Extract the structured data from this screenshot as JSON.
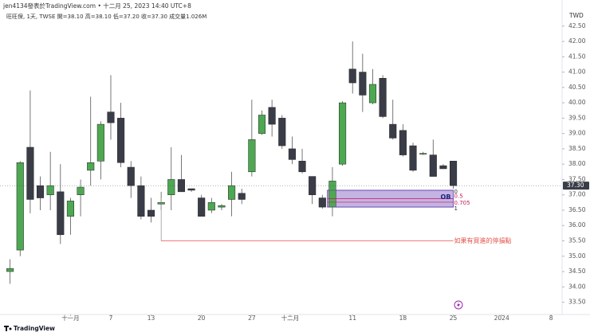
{
  "header": {
    "author_line": "jen4134發表於TradingView.com • 十二月 25, 2023 14:40 UTC+8",
    "symbol_line": "旺旺保, 1天, TWSE 開=38.10 高=38.10 低=37.20 收=37.30 成交量1.026M"
  },
  "brand": "TradingView",
  "chart_data": {
    "type": "candlestick",
    "currency": "TWD",
    "up_color": "#4ea852",
    "down_color": "#3a3d47",
    "candles": [
      {
        "o": 34.5,
        "h": 34.9,
        "l": 34.1,
        "c": 34.6
      },
      {
        "o": 35.2,
        "h": 38.1,
        "l": 35.0,
        "c": 38.05
      },
      {
        "o": 38.55,
        "h": 40.4,
        "l": 36.4,
        "c": 36.85
      },
      {
        "o": 37.3,
        "h": 37.6,
        "l": 36.5,
        "c": 36.9
      },
      {
        "o": 37.0,
        "h": 38.4,
        "l": 36.5,
        "c": 37.3
      },
      {
        "o": 37.1,
        "h": 38.0,
        "l": 35.4,
        "c": 35.7
      },
      {
        "o": 36.3,
        "h": 36.9,
        "l": 35.7,
        "c": 36.8
      },
      {
        "o": 37.0,
        "h": 37.5,
        "l": 36.3,
        "c": 37.25
      },
      {
        "o": 37.8,
        "h": 40.2,
        "l": 37.3,
        "c": 38.05
      },
      {
        "o": 38.1,
        "h": 39.4,
        "l": 37.5,
        "c": 39.3
      },
      {
        "o": 39.7,
        "h": 40.9,
        "l": 38.8,
        "c": 39.35
      },
      {
        "o": 39.5,
        "h": 40.0,
        "l": 37.9,
        "c": 38.05
      },
      {
        "o": 37.9,
        "h": 38.1,
        "l": 36.9,
        "c": 37.3
      },
      {
        "o": 37.3,
        "h": 37.6,
        "l": 36.2,
        "c": 36.3
      },
      {
        "o": 36.5,
        "h": 36.9,
        "l": 36.1,
        "c": 36.3
      },
      {
        "o": 36.7,
        "h": 37.1,
        "l": 36.5,
        "c": 36.75
      },
      {
        "o": 37.0,
        "h": 38.55,
        "l": 36.5,
        "c": 37.5
      },
      {
        "o": 37.5,
        "h": 38.3,
        "l": 37.1,
        "c": 37.1
      },
      {
        "o": 37.2,
        "h": 37.2,
        "l": 37.1,
        "c": 37.15
      },
      {
        "o": 36.9,
        "h": 37.0,
        "l": 36.3,
        "c": 36.3
      },
      {
        "o": 36.5,
        "h": 36.9,
        "l": 36.4,
        "c": 36.75
      },
      {
        "o": 36.6,
        "h": 36.7,
        "l": 36.5,
        "c": 36.65
      },
      {
        "o": 36.85,
        "h": 37.75,
        "l": 36.3,
        "c": 37.3
      },
      {
        "o": 37.05,
        "h": 37.2,
        "l": 36.7,
        "c": 36.85
      },
      {
        "o": 37.75,
        "h": 40.1,
        "l": 37.6,
        "c": 38.8
      },
      {
        "o": 39.0,
        "h": 39.75,
        "l": 38.95,
        "c": 39.6
      },
      {
        "o": 39.85,
        "h": 40.1,
        "l": 38.9,
        "c": 39.3
      },
      {
        "o": 39.5,
        "h": 39.6,
        "l": 38.5,
        "c": 38.6
      },
      {
        "o": 38.5,
        "h": 38.9,
        "l": 38.0,
        "c": 38.15
      },
      {
        "o": 38.1,
        "h": 38.5,
        "l": 37.7,
        "c": 37.75
      },
      {
        "o": 37.6,
        "h": 37.6,
        "l": 36.7,
        "c": 37.0
      },
      {
        "o": 36.9,
        "h": 37.0,
        "l": 36.55,
        "c": 36.6
      },
      {
        "o": 36.6,
        "h": 37.9,
        "l": 36.3,
        "c": 37.45
      },
      {
        "o": 38.0,
        "h": 40.05,
        "l": 37.95,
        "c": 40.0
      },
      {
        "o": 41.1,
        "h": 42.0,
        "l": 40.3,
        "c": 40.65
      },
      {
        "o": 41.0,
        "h": 41.6,
        "l": 39.7,
        "c": 40.25
      },
      {
        "o": 40.0,
        "h": 41.1,
        "l": 39.95,
        "c": 40.6
      },
      {
        "o": 40.8,
        "h": 40.9,
        "l": 39.5,
        "c": 39.55
      },
      {
        "o": 39.3,
        "h": 40.1,
        "l": 38.8,
        "c": 38.85
      },
      {
        "o": 39.1,
        "h": 39.3,
        "l": 38.25,
        "c": 38.3
      },
      {
        "o": 38.6,
        "h": 38.7,
        "l": 37.75,
        "c": 37.8
      },
      {
        "o": 38.35,
        "h": 38.4,
        "l": 38.3,
        "c": 38.35
      },
      {
        "o": 38.3,
        "h": 38.8,
        "l": 37.6,
        "c": 37.6
      },
      {
        "o": 37.95,
        "h": 38.0,
        "l": 37.85,
        "c": 37.85
      },
      {
        "o": 38.1,
        "h": 38.1,
        "l": 37.2,
        "c": 37.3
      }
    ],
    "xlim": [
      -1,
      54.8
    ],
    "xticks": [
      {
        "value": 6,
        "label": "十一月"
      },
      {
        "value": 10,
        "label": "7"
      },
      {
        "value": 14,
        "label": "13"
      },
      {
        "value": 19,
        "label": "20"
      },
      {
        "value": 24,
        "label": "27"
      },
      {
        "value": 27.8,
        "label": "十二月"
      },
      {
        "value": 34,
        "label": "11"
      },
      {
        "value": 39,
        "label": "18"
      },
      {
        "value": 44,
        "label": "25"
      },
      {
        "value": 48.8,
        "label": "2024"
      },
      {
        "value": 53.7,
        "label": "8"
      }
    ],
    "ylim": [
      33.1,
      43.35
    ],
    "yticks": [
      {
        "value": 33.5,
        "label": "33.50"
      },
      {
        "value": 34,
        "label": "34.00"
      },
      {
        "value": 34.5,
        "label": "34.50"
      },
      {
        "value": 35,
        "label": "35.00"
      },
      {
        "value": 35.5,
        "label": "35.50"
      },
      {
        "value": 36,
        "label": "36.00"
      },
      {
        "value": 36.5,
        "label": "36.50"
      },
      {
        "value": 37,
        "label": "37.00"
      },
      {
        "value": 37.5,
        "label": "37.50"
      },
      {
        "value": 38,
        "label": "38.00"
      },
      {
        "value": 38.5,
        "label": "38.50"
      },
      {
        "value": 39,
        "label": "39.00"
      },
      {
        "value": 39.5,
        "label": "39.50"
      },
      {
        "value": 40,
        "label": "40.00"
      },
      {
        "value": 40.5,
        "label": "40.50"
      },
      {
        "value": 41,
        "label": "41.00"
      },
      {
        "value": 41.5,
        "label": "41.50"
      },
      {
        "value": 42,
        "label": "42.00"
      },
      {
        "value": 42.5,
        "label": "42.50"
      }
    ],
    "last_price": {
      "value": 37.3,
      "label": "37.30"
    },
    "order_block": {
      "label": "OB",
      "x_start": 31.5,
      "x_end": 44,
      "top": 37.15,
      "bottom": 36.6,
      "levels": [
        {
          "label": "0",
          "value": 37.15
        },
        {
          "label": "0.5",
          "value": 36.875
        },
        {
          "label": "0.705",
          "value": 36.76
        },
        {
          "label": "1",
          "value": 36.6
        }
      ]
    },
    "stop_line": {
      "text": "如果有買進的停損點",
      "value": 35.5,
      "x_start": 15,
      "x_end": 44,
      "from_value": 36.9
    }
  }
}
